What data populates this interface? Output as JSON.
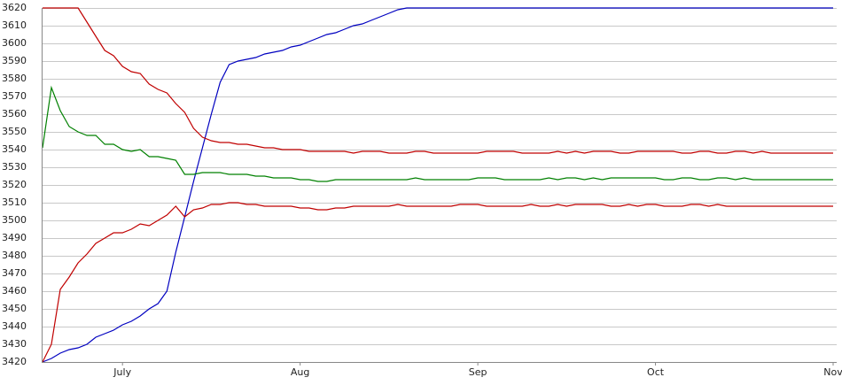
{
  "chart_data": {
    "type": "line",
    "categories": [
      null,
      null,
      null,
      null,
      null,
      null,
      null,
      null,
      null,
      "July",
      null,
      null,
      null,
      null,
      null,
      null,
      null,
      null,
      null,
      null,
      null,
      null,
      null,
      null,
      null,
      null,
      null,
      null,
      null,
      "Aug",
      null,
      null,
      null,
      null,
      null,
      null,
      null,
      null,
      null,
      null,
      null,
      null,
      null,
      null,
      null,
      null,
      null,
      null,
      null,
      "Sep",
      null,
      null,
      null,
      null,
      null,
      null,
      null,
      null,
      null,
      null,
      null,
      null,
      null,
      null,
      null,
      null,
      null,
      null,
      null,
      "Oct",
      null,
      null,
      null,
      null,
      null,
      null,
      null,
      null,
      null,
      null,
      null,
      null,
      null,
      null,
      null,
      null,
      null,
      null,
      null,
      "Nov"
    ],
    "series": [
      {
        "color": "#0000c0",
        "values": [
          3420,
          3422,
          3425,
          3427,
          3428,
          3430,
          3434,
          3436,
          3438,
          3441,
          3443,
          3446,
          3450,
          3453,
          3460,
          3482,
          3502,
          3522,
          3541,
          3560,
          3578,
          3588,
          3590,
          3591,
          3592,
          3594,
          3595,
          3596,
          3598,
          3599,
          3601,
          3603,
          3605,
          3606,
          3608,
          3610,
          3611,
          3613,
          3615,
          3617,
          3619,
          3620,
          3620,
          3620,
          3620,
          3620,
          3620,
          3620,
          3620,
          3620,
          3620,
          3620,
          3620,
          3620,
          3620,
          3620,
          3620,
          3620,
          3620,
          3620,
          3620,
          3620,
          3620,
          3620,
          3620,
          3620,
          3620,
          3620,
          3620,
          3620,
          3620,
          3620,
          3620,
          3620,
          3620,
          3620,
          3620,
          3620,
          3620,
          3620,
          3620,
          3620,
          3620,
          3620,
          3620,
          3620,
          3620,
          3620,
          3620,
          3620
        ]
      },
      {
        "color": "#c00000",
        "values": [
          3620,
          3620,
          3620,
          3620,
          3620,
          3612,
          3604,
          3596,
          3593,
          3587,
          3584,
          3583,
          3577,
          3574,
          3572,
          3566,
          3561,
          3552,
          3547,
          3545,
          3544,
          3544,
          3543,
          3543,
          3542,
          3541,
          3541,
          3540,
          3540,
          3540,
          3539,
          3539,
          3539,
          3539,
          3539,
          3538,
          3539,
          3539,
          3539,
          3538,
          3538,
          3538,
          3539,
          3539,
          3538,
          3538,
          3538,
          3538,
          3538,
          3538,
          3539,
          3539,
          3539,
          3539,
          3538,
          3538,
          3538,
          3538,
          3539,
          3538,
          3539,
          3538,
          3539,
          3539,
          3539,
          3538,
          3538,
          3539,
          3539,
          3539,
          3539,
          3539,
          3538,
          3538,
          3539,
          3539,
          3538,
          3538,
          3539,
          3539,
          3538,
          3539,
          3538,
          3538,
          3538,
          3538,
          3538,
          3538,
          3538,
          3538
        ]
      },
      {
        "color": "#008000",
        "values": [
          3541,
          3575,
          3562,
          3553,
          3550,
          3548,
          3548,
          3543,
          3543,
          3540,
          3539,
          3540,
          3536,
          3536,
          3535,
          3534,
          3526,
          3526,
          3527,
          3527,
          3527,
          3526,
          3526,
          3526,
          3525,
          3525,
          3524,
          3524,
          3524,
          3523,
          3523,
          3522,
          3522,
          3523,
          3523,
          3523,
          3523,
          3523,
          3523,
          3523,
          3523,
          3523,
          3524,
          3523,
          3523,
          3523,
          3523,
          3523,
          3523,
          3524,
          3524,
          3524,
          3523,
          3523,
          3523,
          3523,
          3523,
          3524,
          3523,
          3524,
          3524,
          3523,
          3524,
          3523,
          3524,
          3524,
          3524,
          3524,
          3524,
          3524,
          3523,
          3523,
          3524,
          3524,
          3523,
          3523,
          3524,
          3524,
          3523,
          3524,
          3523,
          3523,
          3523,
          3523,
          3523,
          3523,
          3523,
          3523,
          3523,
          3523
        ]
      },
      {
        "color": "#c00000",
        "values": [
          3420,
          3430,
          3461,
          3468,
          3476,
          3481,
          3487,
          3490,
          3493,
          3493,
          3495,
          3498,
          3497,
          3500,
          3503,
          3508,
          3502,
          3506,
          3507,
          3509,
          3509,
          3510,
          3510,
          3509,
          3509,
          3508,
          3508,
          3508,
          3508,
          3507,
          3507,
          3506,
          3506,
          3507,
          3507,
          3508,
          3508,
          3508,
          3508,
          3508,
          3509,
          3508,
          3508,
          3508,
          3508,
          3508,
          3508,
          3509,
          3509,
          3509,
          3508,
          3508,
          3508,
          3508,
          3508,
          3509,
          3508,
          3508,
          3509,
          3508,
          3509,
          3509,
          3509,
          3509,
          3508,
          3508,
          3509,
          3508,
          3509,
          3509,
          3508,
          3508,
          3508,
          3509,
          3509,
          3508,
          3509,
          3508,
          3508,
          3508,
          3508,
          3508,
          3508,
          3508,
          3508,
          3508,
          3508,
          3508,
          3508,
          3508
        ]
      }
    ],
    "ylim": [
      3420,
      3620
    ],
    "yticks": [
      3420,
      3430,
      3440,
      3450,
      3460,
      3470,
      3480,
      3490,
      3500,
      3510,
      3520,
      3530,
      3540,
      3550,
      3560,
      3570,
      3580,
      3590,
      3600,
      3610,
      3620
    ],
    "grid": true
  }
}
